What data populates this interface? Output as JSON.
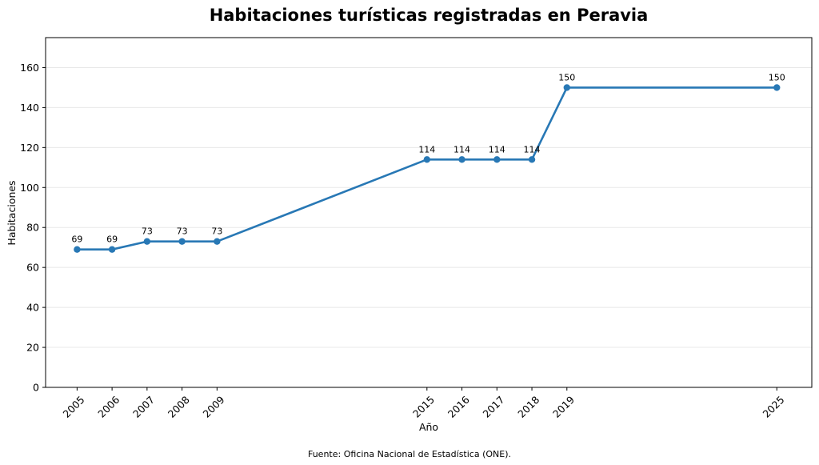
{
  "chart_data": {
    "type": "line",
    "title": "Habitaciones turísticas registradas en Peravia",
    "xlabel": "Año",
    "ylabel": "Habitaciones",
    "x": [
      2005,
      2006,
      2007,
      2008,
      2009,
      2015,
      2016,
      2017,
      2018,
      2019,
      2025
    ],
    "values": [
      69,
      69,
      73,
      73,
      73,
      114,
      114,
      114,
      114,
      150,
      150
    ],
    "xlim": [
      2004.1,
      2026.0
    ],
    "ylim": [
      0,
      175
    ],
    "yticks": [
      0,
      20,
      40,
      60,
      80,
      100,
      120,
      140,
      160
    ],
    "xticks": [
      2005,
      2006,
      2007,
      2008,
      2009,
      2015,
      2016,
      2017,
      2018,
      2019,
      2025
    ],
    "grid": "horizontal",
    "line_color": "#2878b5",
    "source_note": "Fuente: Oficina Nacional de Estadística (ONE)."
  }
}
